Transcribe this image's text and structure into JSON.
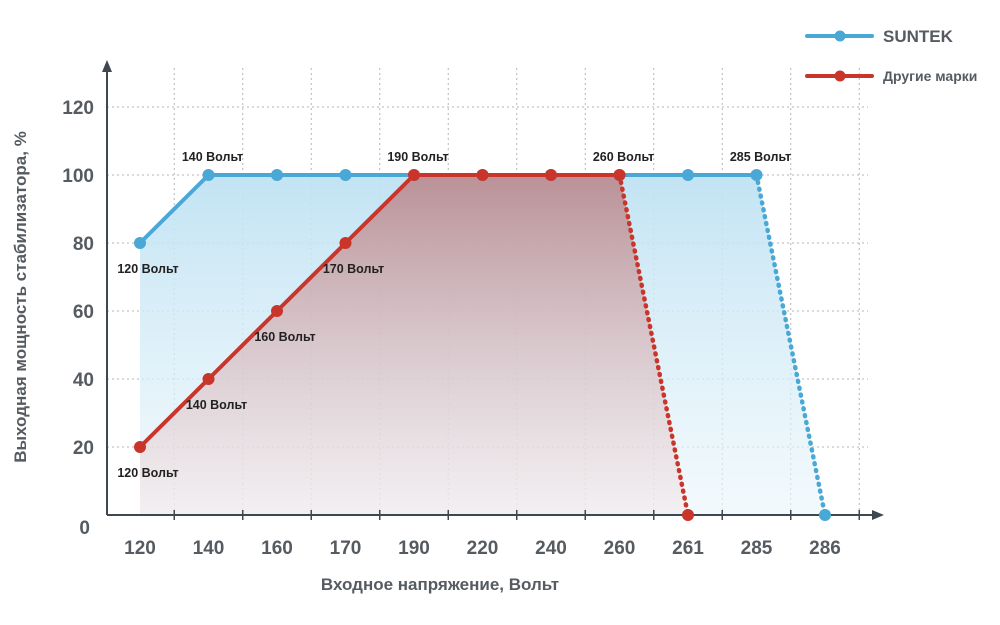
{
  "chart_data": {
    "type": "line",
    "xlabel": "Входное напряжение, Вольт",
    "ylabel": "Выходная мощность стабилизатора, %",
    "categories": [
      "120",
      "140",
      "160",
      "170",
      "190",
      "220",
      "240",
      "260",
      "261",
      "285",
      "286"
    ],
    "y_ticks": [
      "0",
      "20",
      "40",
      "60",
      "80",
      "100",
      "120"
    ],
    "ylim": [
      0,
      130
    ],
    "grid": true,
    "legend_position": "top-right",
    "series": [
      {
        "name": "SUNTEK",
        "color": "#49a8d6",
        "fill": "#cfe9f5",
        "points": [
          {
            "x": "120",
            "y": 80,
            "label": "120 Вольт",
            "label_pos": "below"
          },
          {
            "x": "140",
            "y": 100,
            "label": "140 Вольт",
            "label_pos": "above"
          },
          {
            "x": "160",
            "y": 100
          },
          {
            "x": "170",
            "y": 100
          },
          {
            "x": "190",
            "y": 100,
            "label": "190 Вольт",
            "label_pos": "above"
          },
          {
            "x": "220",
            "y": 100
          },
          {
            "x": "240",
            "y": 100
          },
          {
            "x": "260",
            "y": 100,
            "label": "260 Вольт",
            "label_pos": "above"
          },
          {
            "x": "261",
            "y": 100
          },
          {
            "x": "285",
            "y": 100,
            "label": "285 Вольт",
            "label_pos": "above"
          },
          {
            "x": "286",
            "y": 0,
            "dotted": true
          }
        ]
      },
      {
        "name": "Другие марки",
        "color": "#c9352a",
        "fill": "#c9a0a2",
        "points": [
          {
            "x": "120",
            "y": 20,
            "label": "120 Вольт",
            "label_pos": "below"
          },
          {
            "x": "140",
            "y": 40,
            "label": "140 Вольт",
            "label_pos": "below"
          },
          {
            "x": "160",
            "y": 60,
            "label": "160 Вольт",
            "label_pos": "below"
          },
          {
            "x": "170",
            "y": 80,
            "label": "170 Вольт",
            "label_pos": "below"
          },
          {
            "x": "190",
            "y": 100
          },
          {
            "x": "220",
            "y": 100
          },
          {
            "x": "240",
            "y": 100
          },
          {
            "x": "260",
            "y": 100
          },
          {
            "x": "261",
            "y": 0,
            "dotted": true
          }
        ]
      }
    ]
  }
}
